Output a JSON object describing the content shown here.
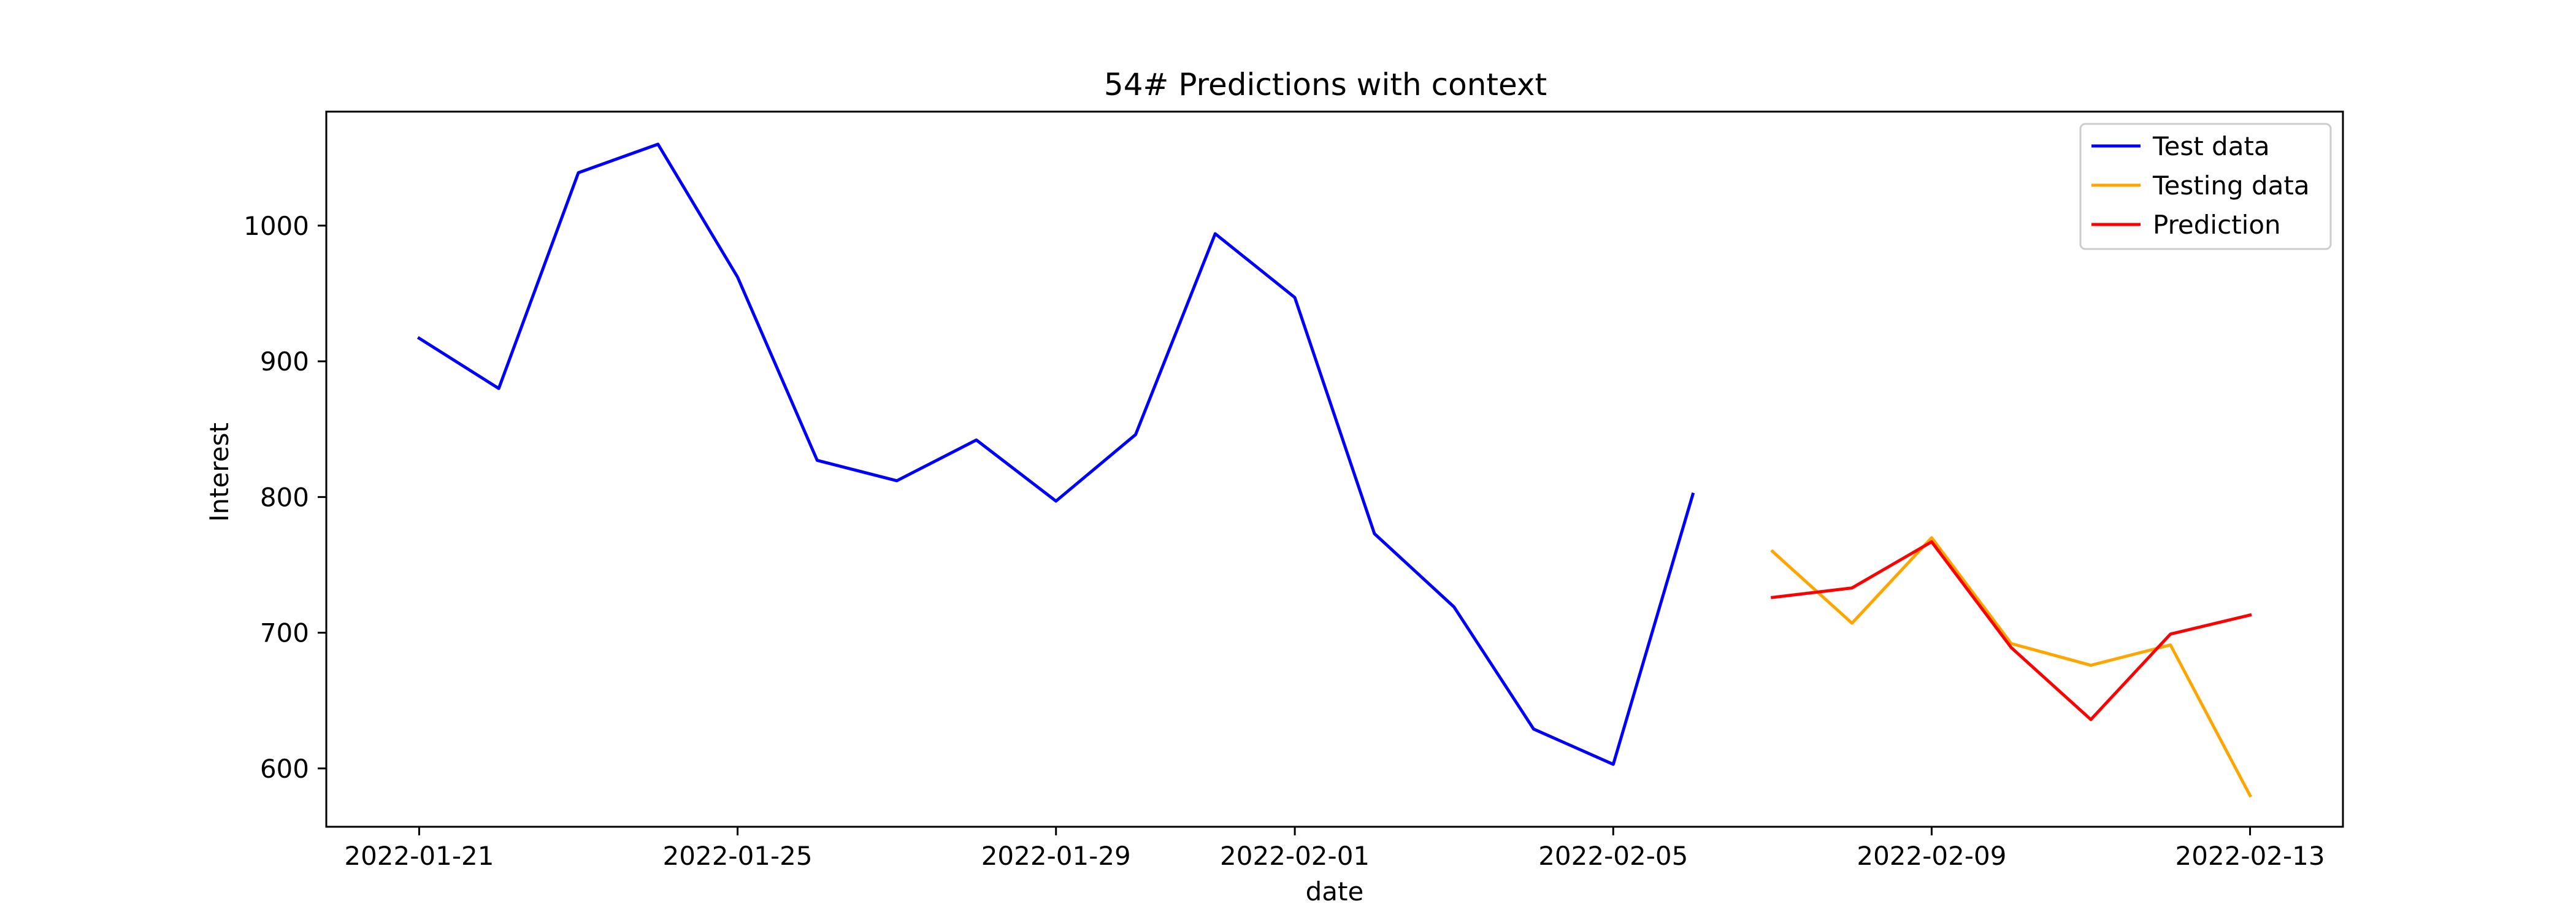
{
  "chart_data": {
    "type": "line",
    "title": "54# Predictions with context",
    "xlabel": "date",
    "ylabel": "Interest",
    "x_type": "date",
    "xlim": [
      "2022-01-19 20:00",
      "2022-02-14 04:00"
    ],
    "ylim": [
      557,
      1084
    ],
    "grid": false,
    "legend_position": "top-right",
    "x_ticks": [
      "2022-01-21",
      "2022-01-25",
      "2022-01-29",
      "2022-02-01",
      "2022-02-05",
      "2022-02-09",
      "2022-02-13"
    ],
    "y_ticks": [
      600,
      700,
      800,
      900,
      1000
    ],
    "series": [
      {
        "name": "Test data",
        "color": "#0000ff",
        "x": [
          "2022-01-21",
          "2022-01-22",
          "2022-01-23",
          "2022-01-24",
          "2022-01-25",
          "2022-01-26",
          "2022-01-27",
          "2022-01-28",
          "2022-01-29",
          "2022-01-30",
          "2022-01-31",
          "2022-02-01",
          "2022-02-02",
          "2022-02-03",
          "2022-02-04",
          "2022-02-05",
          "2022-02-06"
        ],
        "values": [
          917,
          880,
          1039,
          1060,
          962,
          827,
          812,
          842,
          797,
          846,
          994,
          947,
          773,
          719,
          629,
          603,
          802
        ]
      },
      {
        "name": "Testing data",
        "color": "#ffa500",
        "x": [
          "2022-02-07",
          "2022-02-08",
          "2022-02-09",
          "2022-02-10",
          "2022-02-11",
          "2022-02-12",
          "2022-02-13"
        ],
        "values": [
          760,
          707,
          770,
          692,
          676,
          691,
          580
        ]
      },
      {
        "name": "Prediction",
        "color": "#ff0000",
        "x": [
          "2022-02-07",
          "2022-02-08",
          "2022-02-09",
          "2022-02-10",
          "2022-02-11",
          "2022-02-12",
          "2022-02-13"
        ],
        "values": [
          726,
          733,
          767,
          689,
          636,
          699,
          713
        ]
      }
    ]
  }
}
